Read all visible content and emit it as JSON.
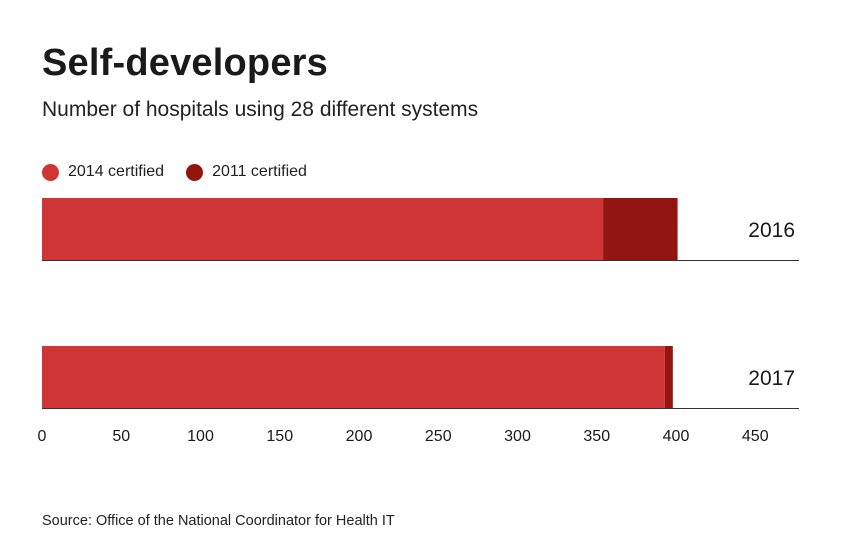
{
  "chart_data": {
    "type": "bar",
    "orientation": "horizontal",
    "stacked": true,
    "title": "Self-developers",
    "subtitle": "Number of hospitals using 28 different systems",
    "categories": [
      "2016",
      "2017"
    ],
    "series": [
      {
        "name": "2014 certified",
        "color": "#cf3535",
        "values": [
          354,
          393
        ]
      },
      {
        "name": "2011 certified",
        "color": "#92160f",
        "values": [
          47,
          5
        ]
      }
    ],
    "xlim": [
      0,
      480
    ],
    "xticks": [
      0,
      50,
      100,
      150,
      200,
      250,
      300,
      350,
      400,
      450
    ],
    "xlabel": "",
    "ylabel": "",
    "legend_position": "top-left",
    "source": "Source: Office of the National Coordinator for Health IT"
  }
}
